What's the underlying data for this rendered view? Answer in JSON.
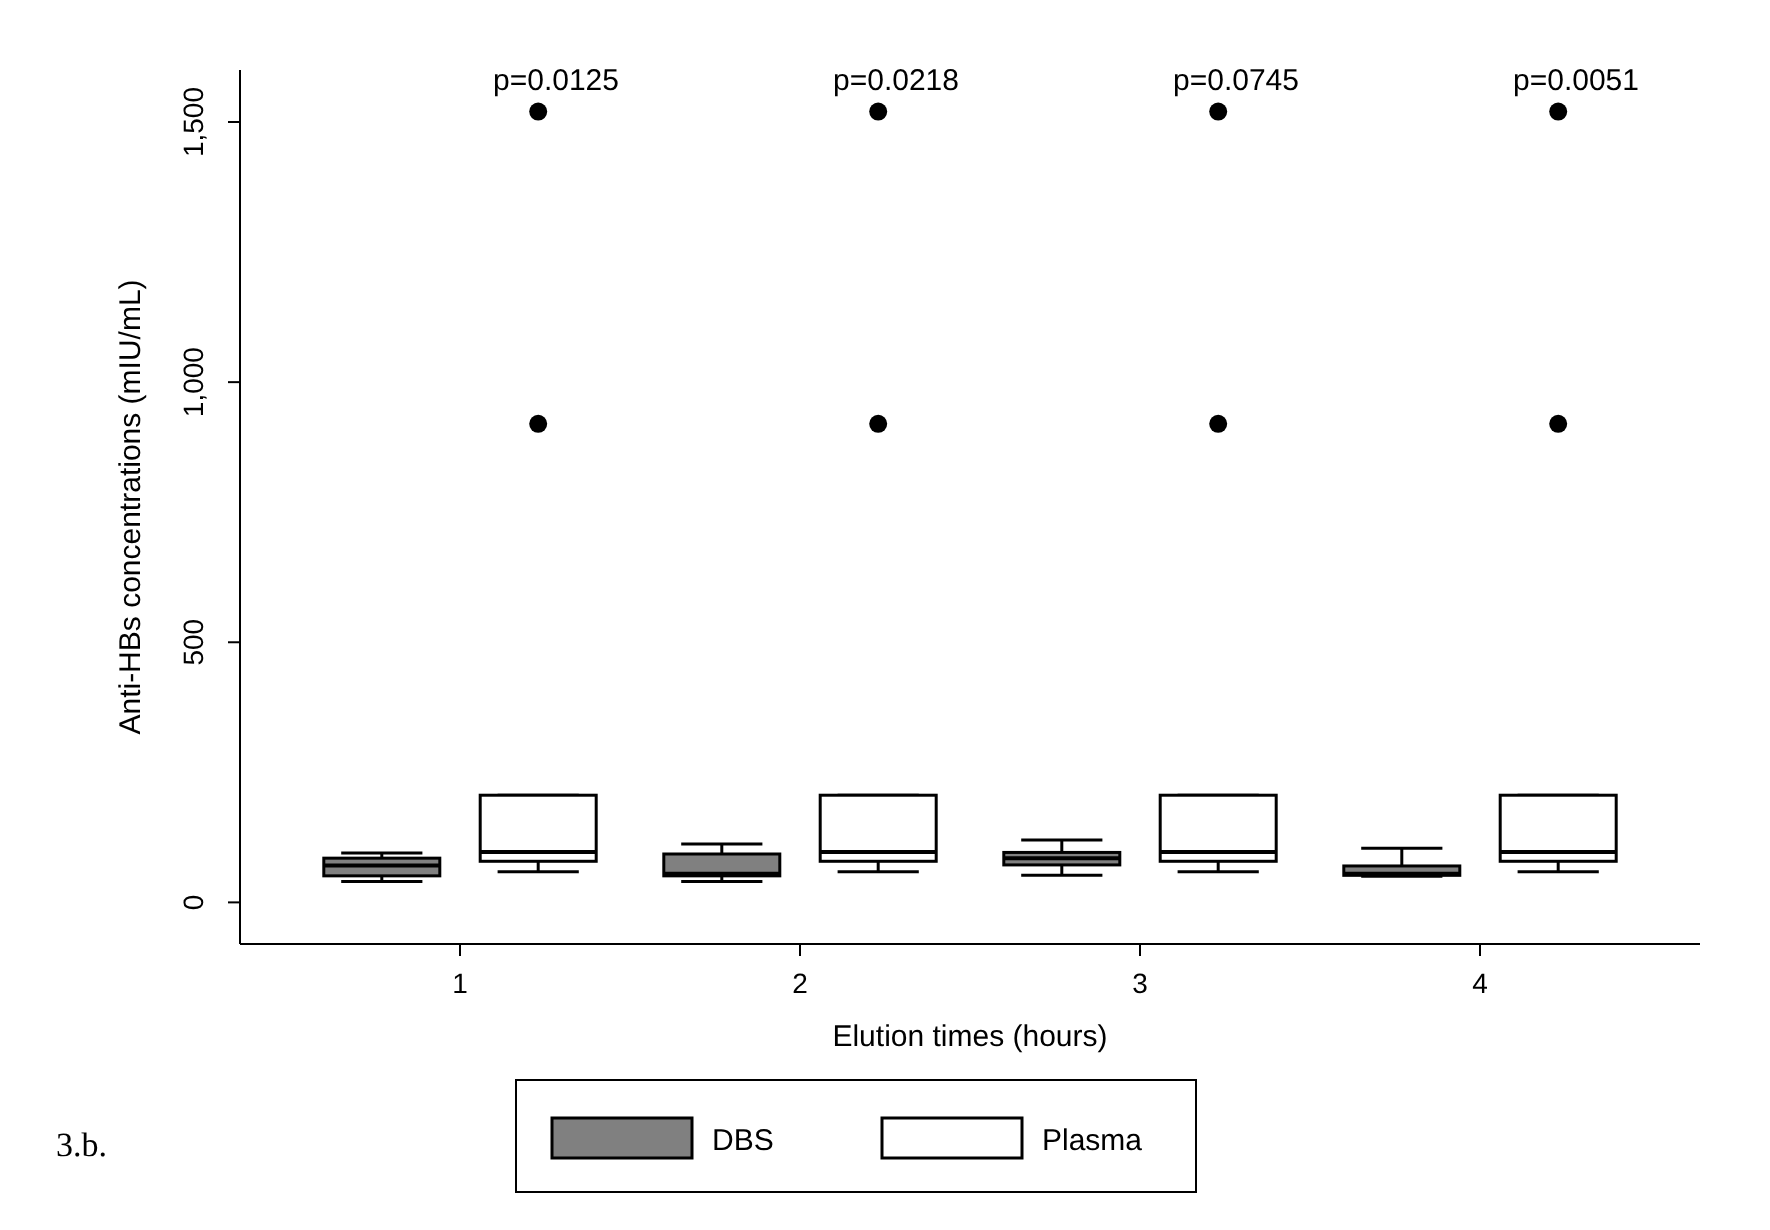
{
  "chart_data": {
    "type": "box",
    "xlabel": "Elution times (hours)",
    "ylabel": "Anti-HBs concentrations (mIU/mL)",
    "categories": [
      "1",
      "2",
      "3",
      "4"
    ],
    "ylim": [
      -80,
      1600
    ],
    "yticks": [
      0,
      {
        "value": 500,
        "label": "500"
      },
      {
        "value": 1000,
        "label": "1,000"
      },
      {
        "value": 1500,
        "label": "1,500"
      }
    ],
    "grid": false,
    "legend": "bottom",
    "series": [
      {
        "name": "DBS",
        "color": "#808080",
        "boxes": [
          {
            "low": 40,
            "q1": 51,
            "median": 71,
            "q3": 85,
            "high": 95
          },
          {
            "low": 40,
            "q1": 51,
            "median": 55,
            "q3": 93,
            "high": 112
          },
          {
            "low": 52,
            "q1": 72,
            "median": 85,
            "q3": 96,
            "high": 120
          },
          {
            "low": 50,
            "q1": 52,
            "median": 55,
            "q3": 70,
            "high": 104
          }
        ]
      },
      {
        "name": "Plasma",
        "color": "#ffffff",
        "boxes": [
          {
            "low": 59,
            "q1": 79,
            "median": 97,
            "q3": 206,
            "high": 206,
            "outliers": [
              920,
              1520
            ]
          },
          {
            "low": 59,
            "q1": 79,
            "median": 97,
            "q3": 206,
            "high": 206,
            "outliers": [
              920,
              1520
            ]
          },
          {
            "low": 59,
            "q1": 79,
            "median": 97,
            "q3": 206,
            "high": 206,
            "outliers": [
              920,
              1520
            ]
          },
          {
            "low": 59,
            "q1": 79,
            "median": 97,
            "q3": 206,
            "high": 206,
            "outliers": [
              920,
              1520
            ]
          }
        ]
      }
    ],
    "annotations": [
      "p=0.0125",
      "p=0.0218",
      "p=0.0745",
      "p=0.0051",
      "3.b."
    ]
  }
}
